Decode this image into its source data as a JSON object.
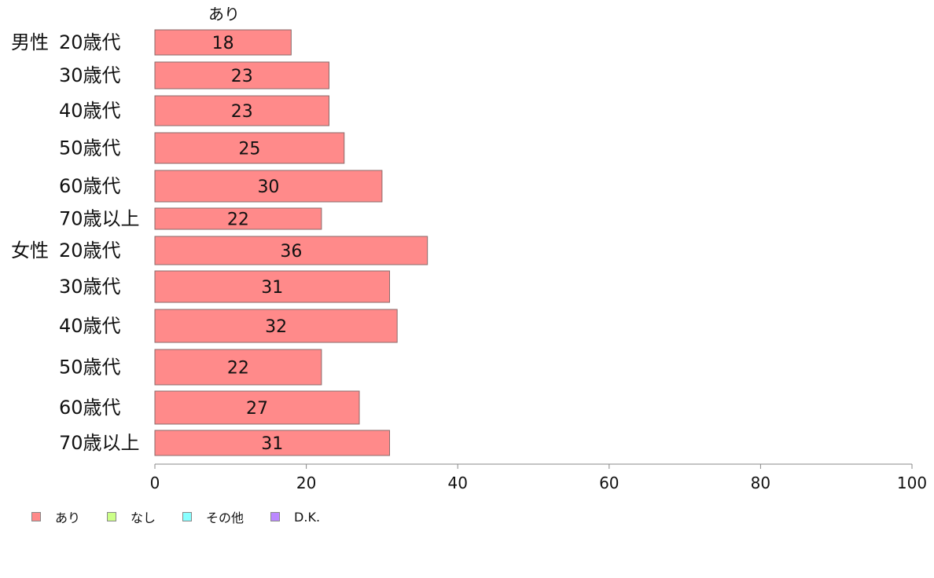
{
  "chart_data": {
    "type": "bar",
    "orientation": "horizontal",
    "stacked": true,
    "series_label_top": "あり",
    "groups": [
      "男性",
      "女性"
    ],
    "categories": [
      {
        "group": "男性",
        "label": "20歳代"
      },
      {
        "group": "",
        "label": "30歳代"
      },
      {
        "group": "",
        "label": "40歳代"
      },
      {
        "group": "",
        "label": "50歳代"
      },
      {
        "group": "",
        "label": "60歳代"
      },
      {
        "group": "",
        "label": "70歳以上"
      },
      {
        "group": "女性",
        "label": "20歳代"
      },
      {
        "group": "",
        "label": "30歳代"
      },
      {
        "group": "",
        "label": "40歳代"
      },
      {
        "group": "",
        "label": "50歳代"
      },
      {
        "group": "",
        "label": "60歳代"
      },
      {
        "group": "",
        "label": "70歳以上"
      }
    ],
    "series": [
      {
        "name": "あり",
        "color": "#ff8a8a",
        "values": [
          18,
          23,
          23,
          25,
          30,
          22,
          36,
          31,
          32,
          22,
          27,
          31
        ]
      }
    ],
    "data_labels": [
      "18",
      "23",
      "23",
      "25",
      "30",
      "22",
      "36",
      "31",
      "32",
      "22",
      "27",
      "31"
    ],
    "xlim": [
      0,
      100
    ],
    "x_ticks": [
      "0",
      "20",
      "40",
      "60",
      "80",
      "100"
    ],
    "legend": [
      {
        "label": "あり",
        "color": "#ff8a8a"
      },
      {
        "label": "なし",
        "color": "#ccff88"
      },
      {
        "label": "その他",
        "color": "#88ffff"
      },
      {
        "label": "D.K.",
        "color": "#bb88ff"
      }
    ],
    "legend_position": "bottom-left",
    "grid": false
  }
}
